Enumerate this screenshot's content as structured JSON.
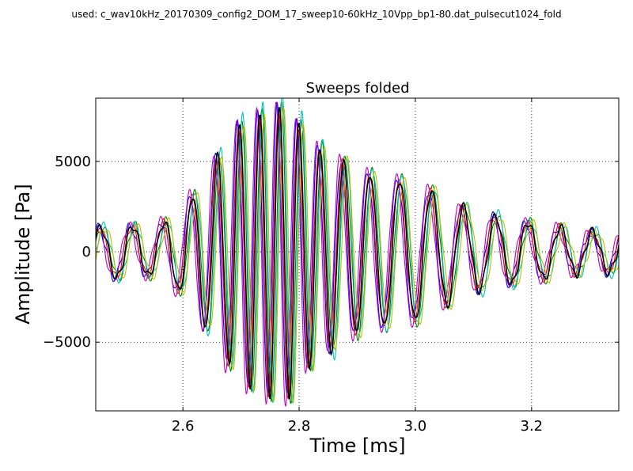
{
  "header": {
    "used_text": "used: c_wav10kHz_20170309_config2_DOM_17_sweep10-60kHz_10Vpp_bp1-80.dat_pulsecut1024_fold"
  },
  "chart_data": {
    "type": "line",
    "title": "Sweeps folded",
    "xlabel": "Time [ms]",
    "ylabel": "Amplitude [Pa]",
    "xlim": [
      2.45,
      3.35
    ],
    "ylim": [
      -8800,
      8500
    ],
    "xticks": [
      2.6,
      2.8,
      3.0,
      3.2
    ],
    "xtick_labels": [
      "2.6",
      "2.8",
      "3.0",
      "3.2"
    ],
    "yticks": [
      -5000,
      0,
      5000
    ],
    "ytick_labels": [
      "−5000",
      "0",
      "5000"
    ],
    "grid": true,
    "grid_style": "dotted",
    "legend": false,
    "envelope": {
      "t": [
        2.45,
        2.5,
        2.55,
        2.6,
        2.65,
        2.7,
        2.75,
        2.78,
        2.82,
        2.9,
        3.0,
        3.1,
        3.2,
        3.3,
        3.35
      ],
      "amplitude": [
        1300,
        1500,
        1300,
        2300,
        4800,
        7200,
        8000,
        8200,
        6200,
        4500,
        3800,
        2200,
        1600,
        1100,
        1200
      ]
    },
    "series": [
      {
        "color": "#0000ff",
        "time_shift_ms": -0.004,
        "amp_scale": 1.0
      },
      {
        "color": "#008000",
        "time_shift_ms": 0.003,
        "amp_scale": 1.03
      },
      {
        "color": "#ff0000",
        "time_shift_ms": -0.002,
        "amp_scale": 0.98
      },
      {
        "color": "#00bfbf",
        "time_shift_ms": 0.005,
        "amp_scale": 1.06
      },
      {
        "color": "#bf00bf",
        "time_shift_ms": -0.006,
        "amp_scale": 1.04
      },
      {
        "color": "#bfbf00",
        "time_shift_ms": 0.007,
        "amp_scale": 1.01
      },
      {
        "color": "#000000",
        "time_shift_ms": 0.0,
        "amp_scale": 1.0
      }
    ]
  }
}
